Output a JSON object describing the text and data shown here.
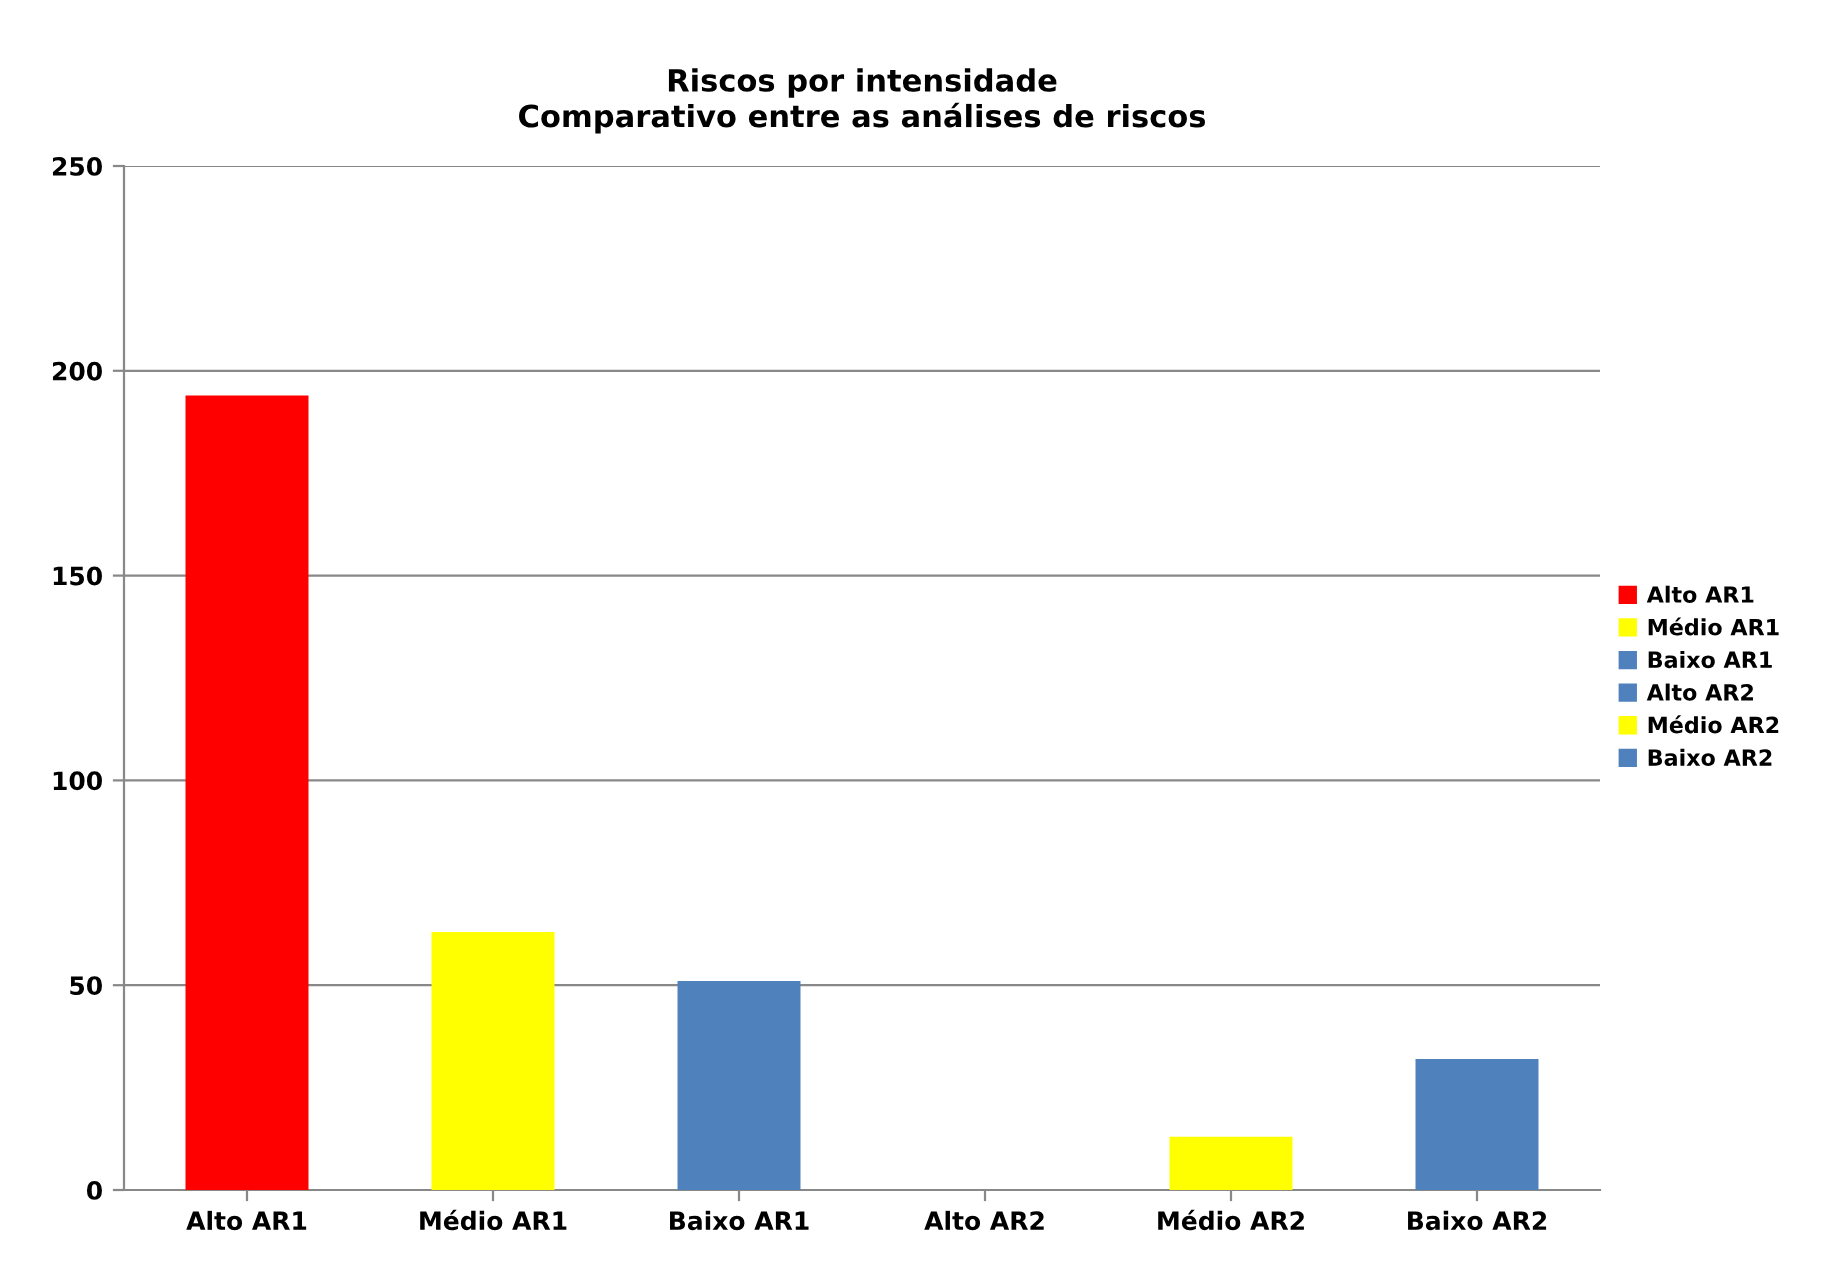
{
  "chart_data": {
    "type": "bar",
    "title": "Riscos por intensidade\nComparativo entre as análises de riscos",
    "categories": [
      "Alto AR1",
      "Médio AR1",
      "Baixo AR1",
      "Alto AR2",
      "Médio AR2",
      "Baixo AR2"
    ],
    "series": [
      {
        "name": "Alto AR1",
        "color": "#ff0000",
        "values": [
          194,
          null,
          null,
          null,
          null,
          null
        ]
      },
      {
        "name": "Médio AR1",
        "color": "#ffff00",
        "values": [
          null,
          63,
          null,
          null,
          null,
          null
        ]
      },
      {
        "name": "Baixo AR1",
        "color": "#4f81bd",
        "values": [
          null,
          null,
          51,
          null,
          null,
          null
        ]
      },
      {
        "name": "Alto AR2",
        "color": "#4f81bd",
        "values": [
          null,
          null,
          null,
          0,
          null,
          null
        ]
      },
      {
        "name": "Médio AR2",
        "color": "#ffff00",
        "values": [
          null,
          null,
          null,
          null,
          13,
          null
        ]
      },
      {
        "name": "Baixo AR2",
        "color": "#4f81bd",
        "values": [
          null,
          null,
          null,
          null,
          null,
          32
        ]
      }
    ],
    "ylim": [
      0,
      250
    ],
    "yticks": [
      0,
      50,
      100,
      150,
      200,
      250
    ],
    "grid": "y",
    "legend": "right"
  }
}
